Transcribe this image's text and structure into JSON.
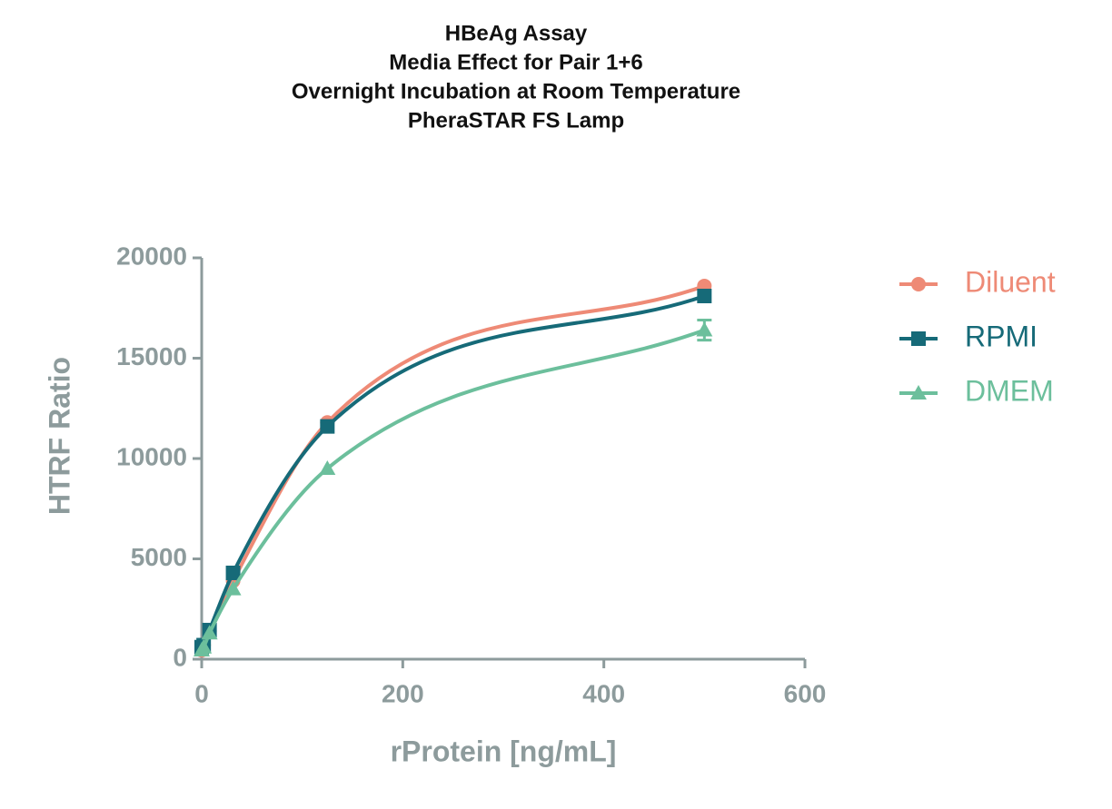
{
  "chart_data": {
    "type": "line",
    "title": [
      "HBeAg Assay",
      "Media Effect for Pair 1+6",
      "Overnight Incubation at Room Temperature",
      "PheraSTAR FS Lamp"
    ],
    "x_label": "rProtein [ng/mL]",
    "y_label": "HTRF Ratio",
    "x": [
      0,
      1.95,
      7.8,
      31.25,
      125,
      500
    ],
    "series": [
      {
        "name": "Diluent",
        "color": "#ee8a76",
        "marker": "circle",
        "values": [
          450,
          700,
          1400,
          3900,
          11800,
          18600
        ]
      },
      {
        "name": "RPMI",
        "color": "#166a78",
        "marker": "square",
        "values": [
          600,
          700,
          1450,
          4300,
          11600,
          18100
        ]
      },
      {
        "name": "DMEM",
        "color": "#6cbf9c",
        "marker": "triangle",
        "values": [
          450,
          600,
          1300,
          3500,
          9500,
          16400
        ],
        "errors": [
          null,
          null,
          null,
          null,
          null,
          500
        ]
      }
    ],
    "xlim": [
      0,
      600
    ],
    "xticks": [
      0,
      200,
      400,
      600
    ],
    "ylim": [
      0,
      20000
    ],
    "yticks": [
      0,
      5000,
      10000,
      15000,
      20000
    ],
    "legend": "right"
  }
}
